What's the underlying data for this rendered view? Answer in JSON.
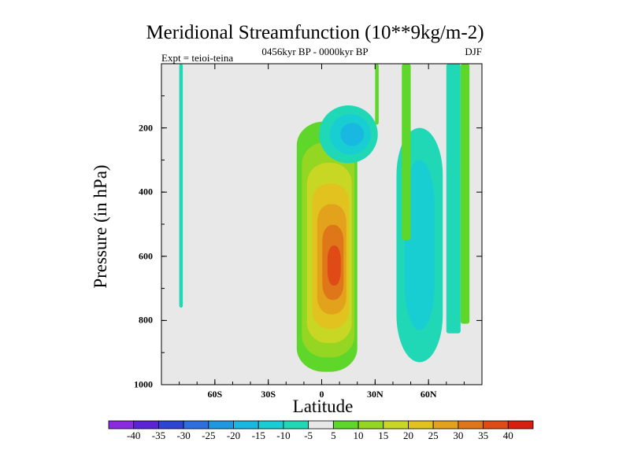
{
  "chart_data": {
    "type": "contour",
    "title": "Meridional Streamfunction (10**9kg/m-2)",
    "subtitle": "0456kyr BP - 0000kyr BP",
    "left_annotation": "Expt = teioi-teina",
    "right_annotation": "DJF",
    "xlabel": "Latitude",
    "ylabel": "Pressure (in hPa)",
    "x_range": [
      -90,
      90
    ],
    "y_range": [
      0,
      1000
    ],
    "y_inverted": true,
    "x_ticks": [
      {
        "value": -60,
        "label": "60S"
      },
      {
        "value": -30,
        "label": "30S"
      },
      {
        "value": 0,
        "label": "0"
      },
      {
        "value": 30,
        "label": "30N"
      },
      {
        "value": 60,
        "label": "60N"
      }
    ],
    "y_ticks": [
      {
        "value": 200,
        "label": "200"
      },
      {
        "value": 400,
        "label": "400"
      },
      {
        "value": 600,
        "label": "600"
      },
      {
        "value": 800,
        "label": "800"
      },
      {
        "value": 1000,
        "label": "1000"
      }
    ],
    "colorbar": {
      "labels": [
        "-40",
        "-35",
        "-30",
        "-25",
        "-20",
        "-15",
        "-10",
        "-5",
        "5",
        "10",
        "15",
        "20",
        "25",
        "30",
        "35",
        "40"
      ],
      "colors": [
        "#8A2BE2",
        "#5B22D6",
        "#2E44D2",
        "#2E6FE0",
        "#1E98E0",
        "#18B8E0",
        "#18CED2",
        "#20D8B6",
        "#E8E8E8",
        "#5ED62A",
        "#94D622",
        "#C8D624",
        "#E2C21E",
        "#E2A21C",
        "#E0761A",
        "#E04A16",
        "#D81E10"
      ]
    },
    "background_color": "#E8E8E8",
    "features": [
      {
        "name": "positive-cell-equator",
        "value": 35,
        "lat_range": [
          -12,
          22
        ],
        "p_range": [
          180,
          960
        ],
        "peak_lat": 0,
        "peak_p": 640
      },
      {
        "name": "negative-cell-upper",
        "value": -15,
        "lat_range": [
          -5,
          28
        ],
        "p_range": [
          110,
          290
        ],
        "peak_lat": 15,
        "peak_p": 220
      },
      {
        "name": "negative-column-60N",
        "value": -10,
        "lat_range": [
          40,
          66
        ],
        "p_range": [
          200,
          930
        ],
        "peak_lat": 57,
        "peak_p": 520
      },
      {
        "name": "negative-column-80N",
        "value": -5,
        "lat_range": [
          70,
          78
        ],
        "p_range": [
          0,
          840
        ]
      },
      {
        "name": "negative-column-80S",
        "value": -5,
        "lat_range": [
          -80,
          -78
        ],
        "p_range": [
          0,
          760
        ]
      },
      {
        "name": "positive-column-45N",
        "value": 5,
        "lat_range": [
          45,
          50
        ],
        "p_range": [
          0,
          550
        ]
      },
      {
        "name": "positive-column-75N",
        "value": 5,
        "lat_range": [
          78,
          83
        ],
        "p_range": [
          0,
          810
        ]
      },
      {
        "name": "positive-sliver-30N",
        "value": 5,
        "lat_range": [
          30,
          32
        ],
        "p_range": [
          0,
          190
        ]
      }
    ]
  }
}
